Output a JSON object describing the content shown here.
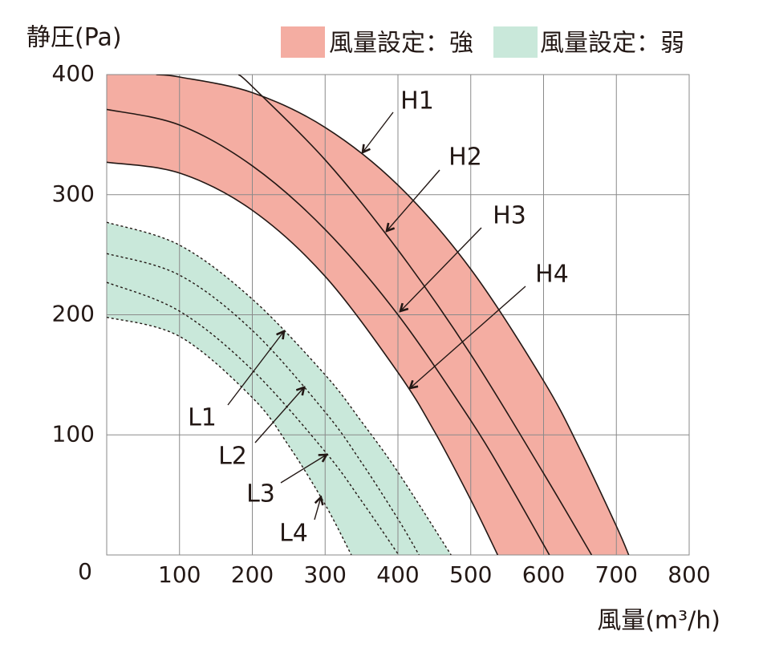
{
  "chart_data": {
    "type": "line",
    "y_label": "静圧(Pa)",
    "x_label": "風量(m³/h)",
    "xlim": [
      0,
      800
    ],
    "ylim": [
      0,
      400
    ],
    "xticks": [
      100,
      200,
      300,
      400,
      500,
      600,
      700,
      800
    ],
    "yticks": [
      0,
      100,
      200,
      300,
      400
    ],
    "grid": true,
    "legend": "top",
    "bands": [
      {
        "name": "風量設定：強",
        "color": "#f4ada2",
        "series": [
          0,
          3
        ]
      },
      {
        "name": "風量設定：弱",
        "color": "#c9e8da",
        "series": [
          4,
          7
        ]
      }
    ],
    "series": [
      {
        "name": "H1",
        "color": "#231815",
        "dashed": false,
        "x": [
          68,
          100,
          200,
          300,
          400,
          500,
          600,
          650,
          700,
          717
        ],
        "values": [
          400,
          398,
          385,
          356,
          308,
          238,
          145,
          88,
          24,
          0
        ]
      },
      {
        "name": "H2",
        "color": "#231815",
        "dashed": false,
        "x": [
          181,
          200,
          300,
          400,
          500,
          600,
          666
        ],
        "values": [
          400,
          390,
          329,
          254,
          167,
          68,
          0
        ]
      },
      {
        "name": "H3",
        "color": "#231815",
        "dashed": false,
        "x": [
          0,
          100,
          200,
          300,
          400,
          500,
          550,
          608
        ],
        "values": [
          371,
          358,
          324,
          271,
          200,
          112,
          62,
          0
        ]
      },
      {
        "name": "H4",
        "color": "#231815",
        "dashed": false,
        "x": [
          0,
          100,
          200,
          300,
          400,
          450,
          500,
          537
        ],
        "values": [
          327,
          318,
          287,
          232,
          152,
          103,
          46,
          0
        ]
      },
      {
        "name": "L1",
        "color": "#231815",
        "dashed": true,
        "x": [
          0,
          100,
          200,
          300,
          350,
          400,
          473
        ],
        "values": [
          277,
          258,
          213,
          150,
          111,
          69,
          0
        ]
      },
      {
        "name": "L2",
        "color": "#231815",
        "dashed": true,
        "x": [
          0,
          100,
          200,
          300,
          350,
          400,
          429
        ],
        "values": [
          251,
          233,
          187,
          119,
          77,
          30,
          0
        ]
      },
      {
        "name": "L3",
        "color": "#231815",
        "dashed": true,
        "x": [
          0,
          100,
          200,
          300,
          350,
          401
        ],
        "values": [
          227,
          203,
          154,
          86,
          45,
          0
        ]
      },
      {
        "name": "L4",
        "color": "#231815",
        "dashed": true,
        "x": [
          0,
          100,
          200,
          250,
          300,
          336
        ],
        "values": [
          198,
          182,
          131,
          91,
          42,
          0
        ]
      }
    ]
  }
}
